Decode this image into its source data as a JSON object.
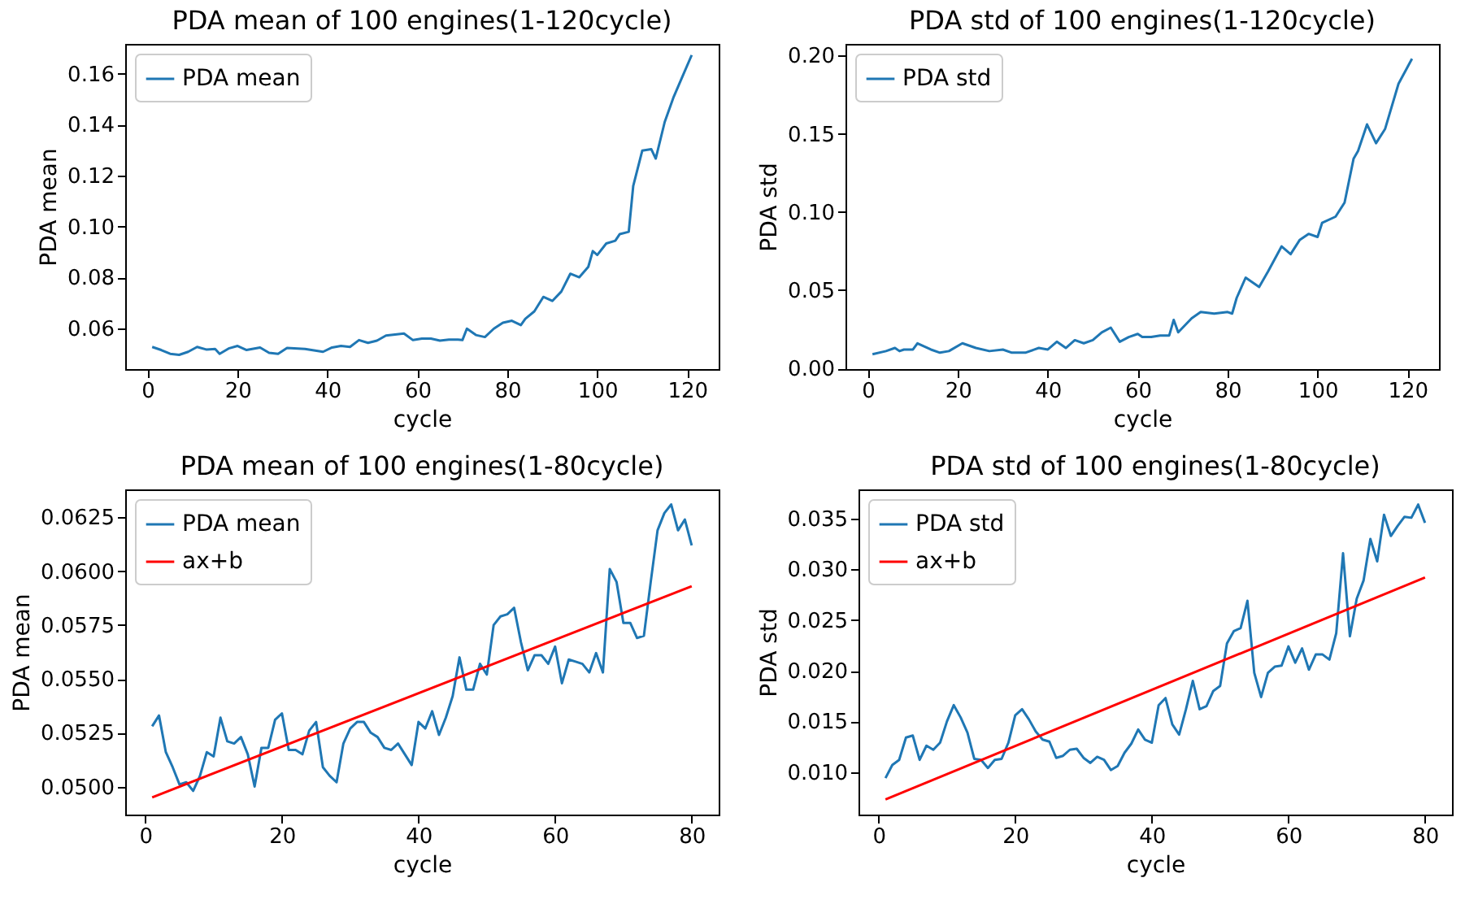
{
  "chart_data": [
    {
      "type": "line",
      "title": "PDA mean of 100 engines(1-120cycle)",
      "xlabel": "cycle",
      "ylabel": "PDA mean",
      "legend": "top left",
      "xlim": [
        -5,
        127
      ],
      "xticks": [
        0,
        20,
        40,
        60,
        80,
        100,
        120
      ],
      "ylim": [
        0.0439,
        0.1718
      ],
      "yticks": [
        {
          "value": 0.06,
          "label": "0.06"
        },
        {
          "value": 0.08,
          "label": "0.08"
        },
        {
          "value": 0.1,
          "label": "0.10"
        },
        {
          "value": 0.12,
          "label": "0.12"
        },
        {
          "value": 0.14,
          "label": "0.14"
        },
        {
          "value": 0.16,
          "label": "0.16"
        }
      ],
      "series": [
        {
          "name": "PDA mean",
          "color": "#1f77b4",
          "x": [
            1,
            3,
            5,
            7,
            9,
            11,
            13,
            15,
            16,
            18,
            20,
            22,
            25,
            27,
            29,
            31,
            35,
            39,
            41,
            43,
            45,
            47,
            49,
            51,
            53,
            57,
            59,
            61,
            63,
            65,
            67,
            69,
            70,
            71,
            73,
            75,
            77,
            79,
            81,
            83,
            84,
            86,
            88,
            90,
            92,
            94,
            96,
            98,
            99,
            100,
            102,
            104,
            105,
            107,
            108,
            110,
            112,
            113,
            115,
            117,
            119,
            121
          ],
          "values": [
            0.0526,
            0.0514,
            0.0499,
            0.0495,
            0.0507,
            0.0526,
            0.0516,
            0.0518,
            0.0499,
            0.052,
            0.053,
            0.0514,
            0.0524,
            0.0503,
            0.0499,
            0.0522,
            0.0518,
            0.0507,
            0.0524,
            0.053,
            0.0526,
            0.0553,
            0.0542,
            0.0551,
            0.0571,
            0.0579,
            0.0553,
            0.0559,
            0.0559,
            0.0551,
            0.0555,
            0.0555,
            0.0553,
            0.0598,
            0.0573,
            0.0565,
            0.0598,
            0.0621,
            0.0629,
            0.0612,
            0.0637,
            0.0666,
            0.0723,
            0.0707,
            0.0744,
            0.0814,
            0.08,
            0.0841,
            0.0903,
            0.0888,
            0.0933,
            0.0944,
            0.097,
            0.0979,
            0.116,
            0.1298,
            0.1304,
            0.1267,
            0.1411,
            0.151,
            0.1592,
            0.1674
          ]
        }
      ]
    },
    {
      "type": "line",
      "title": "PDA std of 100 engines(1-120cycle)",
      "xlabel": "cycle",
      "ylabel": "PDA std",
      "legend": "top left",
      "xlim": [
        -5,
        127
      ],
      "xticks": [
        0,
        20,
        40,
        60,
        80,
        100,
        120
      ],
      "ylim": [
        -0.0005,
        0.2075
      ],
      "yticks": [
        {
          "value": 0,
          "label": "0.00"
        },
        {
          "value": 0.05,
          "label": "0.05"
        },
        {
          "value": 0.1,
          "label": "0.10"
        },
        {
          "value": 0.15,
          "label": "0.15"
        },
        {
          "value": 0.2,
          "label": "0.20"
        }
      ],
      "series": [
        {
          "name": "PDA std",
          "color": "#1f77b4",
          "x": [
            1,
            4,
            6,
            7,
            8,
            10,
            11,
            14,
            16,
            18,
            21,
            24,
            27,
            30,
            32,
            35,
            38,
            40,
            42,
            44,
            46,
            48,
            50,
            52,
            54,
            56,
            58,
            60,
            61,
            63,
            65,
            67,
            68,
            69,
            72,
            74,
            77,
            80,
            81,
            82,
            84,
            87,
            89,
            92,
            94,
            96,
            98,
            100,
            101,
            104,
            106,
            108,
            109,
            111,
            113,
            115,
            118,
            121
          ],
          "values": [
            0.009,
            0.011,
            0.013,
            0.011,
            0.012,
            0.012,
            0.016,
            0.012,
            0.01,
            0.011,
            0.016,
            0.013,
            0.011,
            0.012,
            0.01,
            0.01,
            0.013,
            0.012,
            0.017,
            0.013,
            0.018,
            0.016,
            0.018,
            0.023,
            0.026,
            0.017,
            0.02,
            0.022,
            0.02,
            0.02,
            0.021,
            0.021,
            0.031,
            0.023,
            0.032,
            0.036,
            0.035,
            0.036,
            0.035,
            0.045,
            0.058,
            0.052,
            0.062,
            0.078,
            0.073,
            0.082,
            0.086,
            0.084,
            0.093,
            0.097,
            0.106,
            0.134,
            0.139,
            0.156,
            0.144,
            0.153,
            0.182,
            0.198
          ]
        }
      ]
    },
    {
      "type": "line",
      "title": "PDA mean of 100 engines(1-80cycle)",
      "xlabel": "cycle",
      "ylabel": "PDA mean",
      "legend": "top left",
      "xlim": [
        -2.95,
        83.95
      ],
      "xticks": [
        0,
        20,
        40,
        60,
        80
      ],
      "ylim": [
        0.0487,
        0.0638
      ],
      "yticks": [
        {
          "value": 0.05,
          "label": "0.0500"
        },
        {
          "value": 0.0525,
          "label": "0.0525"
        },
        {
          "value": 0.055,
          "label": "0.0550"
        },
        {
          "value": 0.0575,
          "label": "0.0575"
        },
        {
          "value": 0.06,
          "label": "0.0600"
        },
        {
          "value": 0.0625,
          "label": "0.0625"
        }
      ],
      "series": [
        {
          "name": "PDA mean",
          "color": "#1f77b4",
          "x": [
            1,
            2,
            3,
            4,
            5,
            6,
            7,
            8,
            9,
            10,
            11,
            12,
            13,
            14,
            15,
            16,
            17,
            18,
            19,
            20,
            21,
            22,
            23,
            24,
            25,
            26,
            27,
            28,
            29,
            30,
            31,
            32,
            33,
            34,
            35,
            36,
            37,
            38,
            39,
            40,
            41,
            42,
            43,
            44,
            45,
            46,
            47,
            48,
            49,
            50,
            51,
            52,
            53,
            54,
            55,
            56,
            57,
            58,
            59,
            60,
            61,
            62,
            63,
            64,
            65,
            66,
            67,
            68,
            69,
            70,
            71,
            72,
            73,
            74,
            75,
            76,
            77,
            78,
            79,
            80
          ],
          "values": [
            0.0528,
            0.0533,
            0.0516,
            0.0509,
            0.0501,
            0.0502,
            0.0498,
            0.0505,
            0.0516,
            0.0514,
            0.0532,
            0.0521,
            0.052,
            0.0523,
            0.0515,
            0.05,
            0.0518,
            0.0518,
            0.0531,
            0.0534,
            0.0517,
            0.0517,
            0.0515,
            0.0526,
            0.053,
            0.0509,
            0.0505,
            0.0502,
            0.052,
            0.0527,
            0.053,
            0.053,
            0.0525,
            0.0523,
            0.0518,
            0.0517,
            0.052,
            0.0515,
            0.051,
            0.053,
            0.0527,
            0.0535,
            0.0524,
            0.0532,
            0.0542,
            0.056,
            0.0545,
            0.0545,
            0.0557,
            0.0552,
            0.0575,
            0.0579,
            0.058,
            0.0583,
            0.0567,
            0.0554,
            0.0561,
            0.0561,
            0.0557,
            0.0565,
            0.0548,
            0.0559,
            0.0558,
            0.0557,
            0.0553,
            0.0562,
            0.0553,
            0.0601,
            0.0595,
            0.0576,
            0.0576,
            0.0569,
            0.057,
            0.0595,
            0.0619,
            0.0627,
            0.0631,
            0.0619,
            0.0624,
            0.0612
          ]
        },
        {
          "name": "ax+b",
          "color": "#ff0000",
          "x": [
            1,
            80
          ],
          "values": [
            0.0495,
            0.0593
          ]
        }
      ]
    },
    {
      "type": "line",
      "title": "PDA std of 100 engines(1-80cycle)",
      "xlabel": "cycle",
      "ylabel": "PDA std",
      "legend": "top left",
      "xlim": [
        -2.95,
        83.95
      ],
      "xticks": [
        0,
        20,
        40,
        60,
        80
      ],
      "ylim": [
        0.0058,
        0.0379
      ],
      "yticks": [
        {
          "value": 0.01,
          "label": "0.010"
        },
        {
          "value": 0.015,
          "label": "0.015"
        },
        {
          "value": 0.02,
          "label": "0.020"
        },
        {
          "value": 0.025,
          "label": "0.025"
        },
        {
          "value": 0.03,
          "label": "0.030"
        },
        {
          "value": 0.035,
          "label": "0.035"
        }
      ],
      "series": [
        {
          "name": "PDA std",
          "color": "#1f77b4",
          "x": [
            1,
            2,
            3,
            4,
            5,
            6,
            7,
            8,
            9,
            10,
            11,
            12,
            13,
            14,
            15,
            16,
            17,
            18,
            19,
            20,
            21,
            22,
            23,
            24,
            25,
            26,
            27,
            28,
            29,
            30,
            31,
            32,
            33,
            34,
            35,
            36,
            37,
            38,
            39,
            40,
            41,
            42,
            43,
            44,
            45,
            46,
            47,
            48,
            49,
            50,
            51,
            52,
            53,
            54,
            55,
            56,
            57,
            58,
            59,
            60,
            61,
            62,
            63,
            64,
            65,
            66,
            67,
            68,
            69,
            70,
            71,
            72,
            73,
            74,
            75,
            76,
            77,
            78,
            79,
            80
          ],
          "values": [
            0.0094,
            0.0107,
            0.0112,
            0.0134,
            0.0136,
            0.0112,
            0.0126,
            0.0122,
            0.0129,
            0.015,
            0.0166,
            0.0154,
            0.0139,
            0.0113,
            0.0112,
            0.0104,
            0.0112,
            0.0113,
            0.0129,
            0.0156,
            0.0162,
            0.0152,
            0.014,
            0.0132,
            0.013,
            0.0114,
            0.0116,
            0.0122,
            0.0123,
            0.0114,
            0.0109,
            0.0115,
            0.0112,
            0.0102,
            0.0106,
            0.0119,
            0.0128,
            0.0142,
            0.0132,
            0.0129,
            0.0166,
            0.0173,
            0.0147,
            0.0137,
            0.0162,
            0.019,
            0.0162,
            0.0165,
            0.018,
            0.0185,
            0.0227,
            0.0239,
            0.0242,
            0.0269,
            0.0198,
            0.0174,
            0.0198,
            0.0204,
            0.0205,
            0.0224,
            0.0208,
            0.0222,
            0.0201,
            0.0216,
            0.0216,
            0.0211,
            0.0237,
            0.0316,
            0.0234,
            0.0271,
            0.0289,
            0.033,
            0.0308,
            0.0354,
            0.0333,
            0.0343,
            0.0352,
            0.0351,
            0.0364,
            0.0346
          ]
        },
        {
          "name": "ax+b",
          "color": "#ff0000",
          "x": [
            1,
            80
          ],
          "values": [
            0.0073,
            0.0292
          ]
        }
      ]
    }
  ]
}
